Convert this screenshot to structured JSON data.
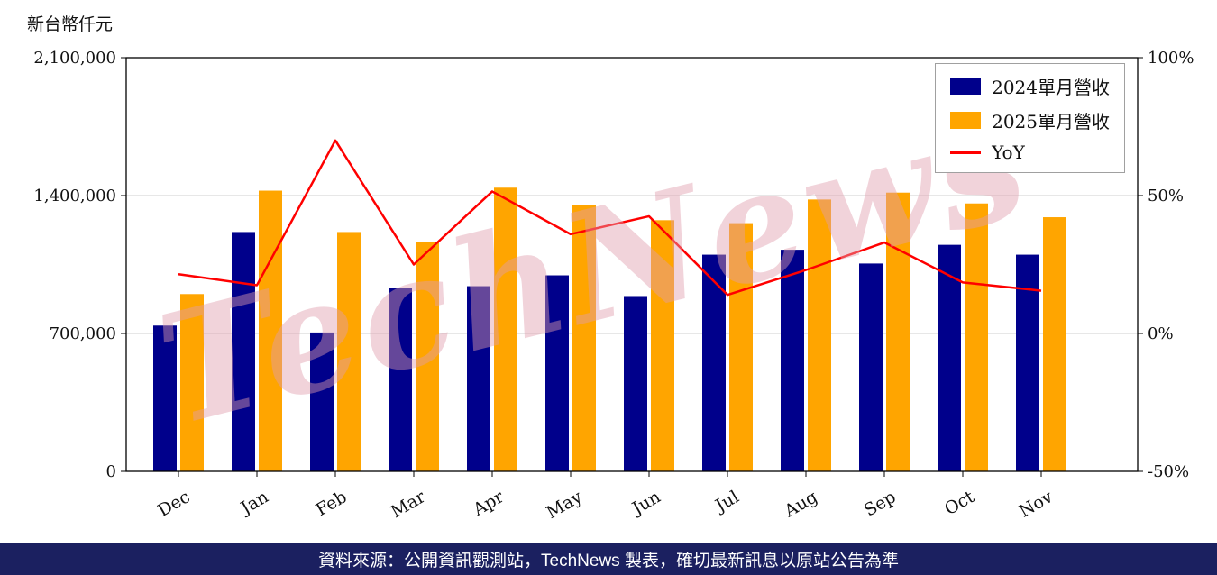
{
  "watermark": "TechNews",
  "footer": {
    "text": "資料來源：公開資訊觀測站，TechNews 製表，確切最新訊息以原站公告為準",
    "bg_color": "#1b2060"
  },
  "chart_data": {
    "type": "bar",
    "title": "",
    "unit_label": "新台幣仟元",
    "categories": [
      "Dec",
      "Jan",
      "Feb",
      "Mar",
      "Apr",
      "May",
      "Jun",
      "Jul",
      "Aug",
      "Sep",
      "Oct",
      "Nov"
    ],
    "series": [
      {
        "name": "2024單月營收",
        "type": "bar",
        "axis": "left",
        "color": "#00008B",
        "values": [
          740000,
          1215000,
          705000,
          930000,
          940000,
          995000,
          890000,
          1100000,
          1125000,
          1055000,
          1150000,
          1100000
        ]
      },
      {
        "name": "2025單月營收",
        "type": "bar",
        "axis": "left",
        "color": "#FFA500",
        "values": [
          900000,
          1425000,
          1215000,
          1165000,
          1440000,
          1350000,
          1275000,
          1260000,
          1380000,
          1415000,
          1360000,
          1290000
        ]
      },
      {
        "name": "YoY",
        "type": "line",
        "axis": "right",
        "color": "#FF0000",
        "values": [
          21.5,
          17.5,
          70,
          25,
          51.5,
          36,
          42.5,
          14,
          23,
          33,
          18.5,
          15.5
        ]
      }
    ],
    "left_axis": {
      "min": 0,
      "max": 2100000,
      "ticks": [
        0,
        700000,
        1400000,
        2100000
      ],
      "labels": [
        "0",
        "700,000",
        "1,400,000",
        "2,100,000"
      ]
    },
    "right_axis": {
      "min": -50,
      "max": 100,
      "ticks": [
        -50,
        0,
        50,
        100
      ],
      "labels": [
        "-50%",
        "0%",
        "50%",
        "100%"
      ]
    },
    "grid": "horizontal",
    "legend_position": "top-right"
  }
}
